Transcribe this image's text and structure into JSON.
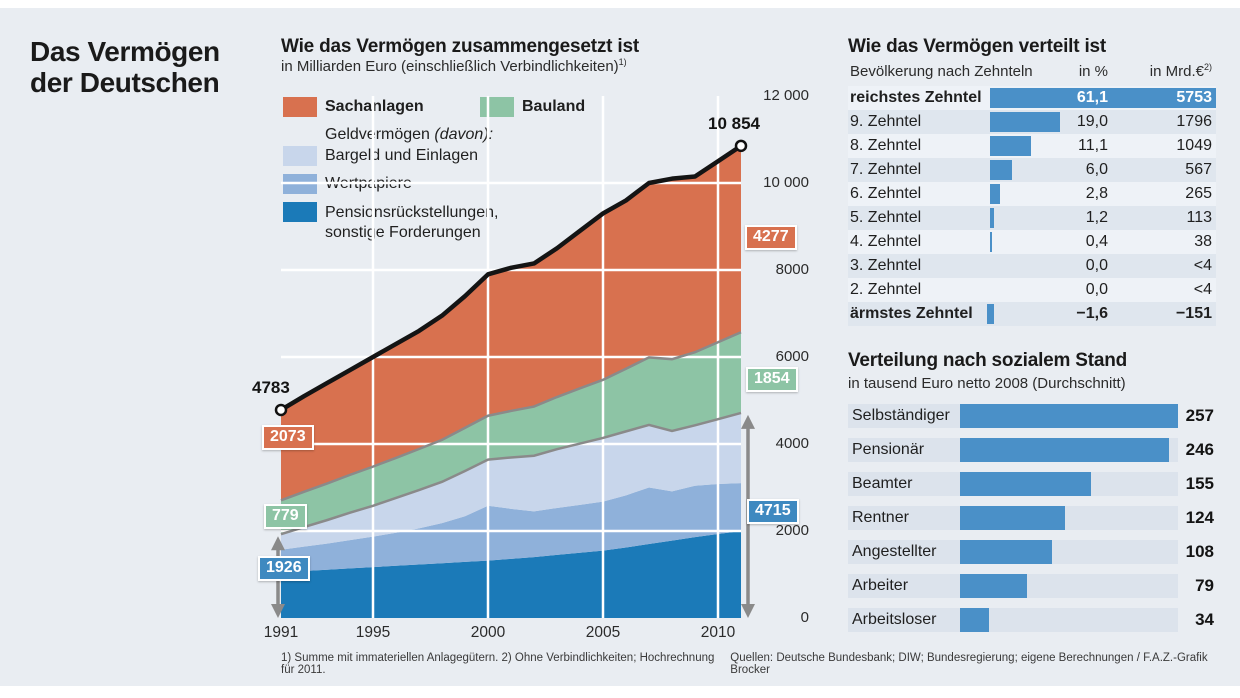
{
  "page": {
    "headline_line1": "Das Vermögen",
    "headline_line2": "der Deutschen",
    "footnote_left": "1) Summe mit immateriellen Anlagegütern. 2) Ohne Verbindlichkeiten; Hochrechnung für 2011.",
    "footnote_right": "Quellen: Deutsche Bundesbank; DIW; Bundesregierung; eigene Berechnungen / F.A.Z.-Grafik Brocker"
  },
  "colors": {
    "background": "#e9edf2",
    "sachanlagen": "#d8714f",
    "bauland": "#8dc4a5",
    "bargeld": "#c8d6eb",
    "wertpapiere": "#8fb1da",
    "pension": "#1b7ab8",
    "bar_blue": "#4a90c8",
    "grid": "#ffffff",
    "boundary": "#8a8a8a",
    "total_line": "#141414",
    "arrow": "#8a8a8a",
    "stripe_light": "#eef2f7",
    "stripe_dark": "#dfe6ee",
    "social_strip": "#dce3ec"
  },
  "chart_data": [
    {
      "id": "composition",
      "type": "area",
      "stacked": true,
      "title": "Wie das Vermögen zusammengesetzt ist",
      "subtitle": "in Milliarden Euro (einschließlich Verbindlichkeiten)",
      "subtitle_sup": "1)",
      "x": [
        1991,
        1992,
        1993,
        1994,
        1995,
        1996,
        1997,
        1998,
        1999,
        2000,
        2001,
        2002,
        2003,
        2004,
        2005,
        2006,
        2007,
        2008,
        2009,
        2010,
        2011
      ],
      "xtick_labels": [
        "1991",
        "1995",
        "2000",
        "2005",
        "2010"
      ],
      "xticks": [
        1991,
        1995,
        2000,
        2005,
        2010
      ],
      "ytick_labels": [
        "0",
        "2000",
        "4000",
        "6000",
        "8000",
        "10 000",
        "12 000"
      ],
      "yticks": [
        0,
        2000,
        4000,
        6000,
        8000,
        10000,
        12000
      ],
      "ylim": [
        0,
        12000
      ],
      "grid": true,
      "legend_position": "top-left",
      "series": [
        {
          "name": "Pensionsrückstellungen, sonstige Forderungen",
          "color": "#1b7ab8",
          "values": [
            1050,
            1080,
            1110,
            1140,
            1170,
            1200,
            1230,
            1260,
            1290,
            1320,
            1360,
            1400,
            1450,
            1500,
            1550,
            1620,
            1700,
            1780,
            1860,
            1930,
            2000
          ]
        },
        {
          "name": "Wertpapiere",
          "color": "#8fb1da",
          "values": [
            520,
            560,
            600,
            650,
            700,
            760,
            830,
            920,
            1050,
            1260,
            1150,
            1050,
            1080,
            1100,
            1125,
            1200,
            1300,
            1130,
            1180,
            1150,
            1100
          ]
        },
        {
          "name": "Bargeld und Einlagen",
          "color": "#c8d6eb",
          "values": [
            356,
            450,
            540,
            630,
            710,
            800,
            880,
            950,
            1040,
            1060,
            1180,
            1280,
            1350,
            1410,
            1465,
            1470,
            1440,
            1390,
            1390,
            1490,
            1615
          ]
        },
        {
          "name": "Bauland",
          "color": "#8dc4a5",
          "values": [
            779,
            810,
            840,
            870,
            900,
            920,
            945,
            965,
            990,
            1010,
            1070,
            1130,
            1200,
            1270,
            1335,
            1440,
            1550,
            1650,
            1680,
            1770,
            1854
          ]
        },
        {
          "name": "Sachanlagen",
          "color": "#d8714f",
          "values": [
            2078,
            2200,
            2310,
            2410,
            2520,
            2620,
            2715,
            2855,
            3030,
            3250,
            3290,
            3290,
            3420,
            3620,
            3825,
            3870,
            4010,
            4150,
            4040,
            4160,
            4285
          ]
        }
      ],
      "legend": {
        "geld_group_bold": "Geldvermögen",
        "geld_group_italic": "(davon):",
        "pension_line1": "Pensionsrückstellungen,",
        "pension_line2": "sonstige Forderungen"
      },
      "annotations": {
        "start_total": "4783",
        "end_total": "10 854",
        "sachanlagen_start": "2073",
        "sachanlagen_end": "4277",
        "bauland_start": "779",
        "bauland_end": "1854",
        "geld_start": "1926",
        "geld_end": "4715"
      }
    },
    {
      "id": "deciles",
      "type": "bar",
      "title": "Wie das Vermögen verteilt ist",
      "col_header_left": "Bevölkerung nach Zehnteln",
      "col_header_pct": "in %",
      "col_header_mrd": "in Mrd.€",
      "col_header_mrd_sup": "2)",
      "bar_scale_max": 61.1,
      "rows": [
        {
          "label": "reichstes Zehntel",
          "pct": "61,1",
          "mrd": "5753",
          "value": 61.1,
          "highlight": true,
          "values_in_bar": true
        },
        {
          "label": "9. Zehntel",
          "pct": "19,0",
          "mrd": "1796",
          "value": 19.0,
          "highlight": false,
          "values_in_bar": false
        },
        {
          "label": "8. Zehntel",
          "pct": "11,1",
          "mrd": "1049",
          "value": 11.1,
          "highlight": false,
          "values_in_bar": false
        },
        {
          "label": "7. Zehntel",
          "pct": "6,0",
          "mrd": "567",
          "value": 6.0,
          "highlight": false,
          "values_in_bar": false
        },
        {
          "label": "6. Zehntel",
          "pct": "2,8",
          "mrd": "265",
          "value": 2.8,
          "highlight": false,
          "values_in_bar": false
        },
        {
          "label": "5. Zehntel",
          "pct": "1,2",
          "mrd": "113",
          "value": 1.2,
          "highlight": false,
          "values_in_bar": false
        },
        {
          "label": "4. Zehntel",
          "pct": "0,4",
          "mrd": "38",
          "value": 0.4,
          "highlight": false,
          "values_in_bar": false
        },
        {
          "label": "3. Zehntel",
          "pct": "0,0",
          "mrd": "<4",
          "value": 0.0,
          "highlight": false,
          "values_in_bar": false
        },
        {
          "label": "2. Zehntel",
          "pct": "0,0",
          "mrd": "<4",
          "value": 0.0,
          "highlight": false,
          "values_in_bar": false
        },
        {
          "label": "ärmstes Zehntel",
          "pct": "−1,6",
          "mrd": "−151",
          "value": -1.6,
          "highlight": true,
          "values_in_bar": false
        }
      ]
    },
    {
      "id": "social",
      "type": "bar",
      "title": "Verteilung nach sozialem Stand",
      "subtitle": "in tausend Euro netto 2008 (Durchschnitt)",
      "categories": [
        "Selbständiger",
        "Pensionär",
        "Beamter",
        "Rentner",
        "Angestellter",
        "Arbeiter",
        "Arbeitsloser"
      ],
      "values": [
        257,
        246,
        155,
        124,
        108,
        79,
        34
      ],
      "value_labels": [
        "257",
        "246",
        "155",
        "124",
        "108",
        "79",
        "34"
      ],
      "bar_scale_max": 257
    }
  ]
}
